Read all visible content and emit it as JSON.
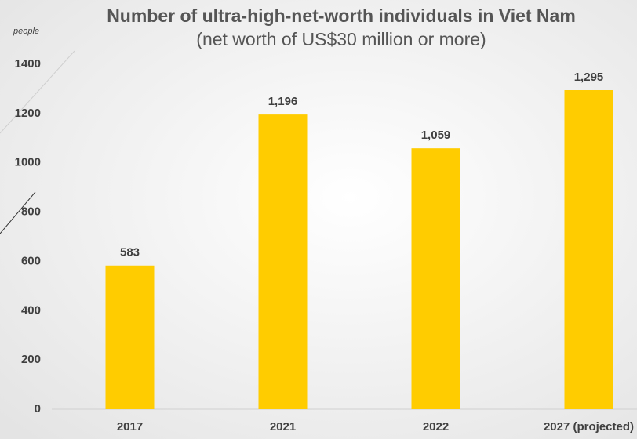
{
  "chart_data": {
    "type": "bar",
    "title": "Number of ultra-high-net-worth individuals in Viet Nam",
    "subtitle": "(net worth of US$30 million or more)",
    "y_label": "people",
    "categories": [
      "2017",
      "2021",
      "2022",
      "2027 (projected)"
    ],
    "values": [
      583,
      1196,
      1059,
      1295
    ],
    "value_labels": [
      "583",
      "1,196",
      "1,059",
      "1,295"
    ],
    "color": "#ffcc00",
    "ylim": [
      0,
      1400
    ],
    "yticks": [
      0,
      200,
      400,
      600,
      800,
      1000,
      1200,
      1400
    ],
    "grid": false
  }
}
